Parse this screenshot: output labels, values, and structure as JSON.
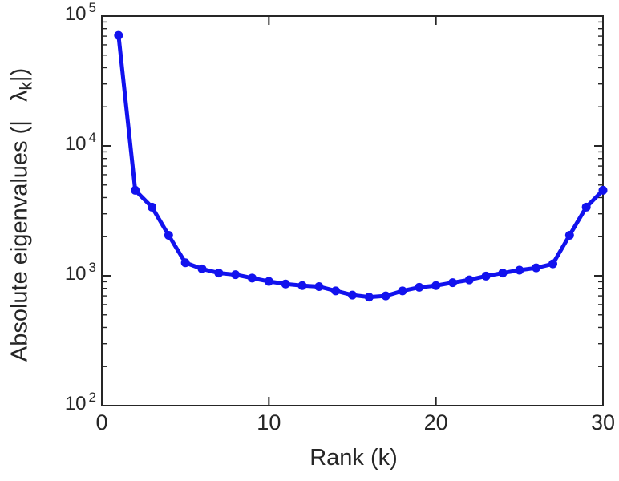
{
  "figure": {
    "background": "#ffffff"
  },
  "chart_data": {
    "type": "line",
    "title": "",
    "xlabel": "Rank (k)",
    "ylabel_plain": "Absolute eigenvalues (| λ_k |)",
    "ylabel": {
      "prefix": "Absolute eigenvalues (|",
      "symbol": "λ",
      "symbol_sub": "k",
      "suffix": "|)"
    },
    "x": [
      1,
      2,
      3,
      4,
      5,
      6,
      7,
      8,
      9,
      10,
      11,
      12,
      13,
      14,
      15,
      16,
      17,
      18,
      19,
      20,
      21,
      22,
      23,
      24,
      25,
      26,
      27,
      28,
      29,
      30
    ],
    "values": [
      71000,
      4550,
      3380,
      2050,
      1260,
      1130,
      1050,
      1020,
      960,
      905,
      865,
      840,
      825,
      765,
      710,
      685,
      700,
      765,
      815,
      840,
      885,
      930,
      995,
      1050,
      1105,
      1150,
      1235,
      2050,
      3380,
      4550
    ],
    "xlim": [
      0,
      30
    ],
    "ylim": [
      100,
      100000
    ],
    "yscale": "log",
    "xscale": "linear",
    "grid": false,
    "legend": null,
    "box": true,
    "tick_direction": "in",
    "xticks": [
      0,
      10,
      20,
      30
    ],
    "ytick_base": "10",
    "ytick_exponents": [
      2,
      3,
      4,
      5
    ],
    "y_minor_multipliers": [
      2,
      3,
      4,
      5,
      6,
      7,
      8,
      9
    ],
    "line_color": "#1212EE",
    "marker": "filled-circle",
    "axis_color": "#262626"
  }
}
